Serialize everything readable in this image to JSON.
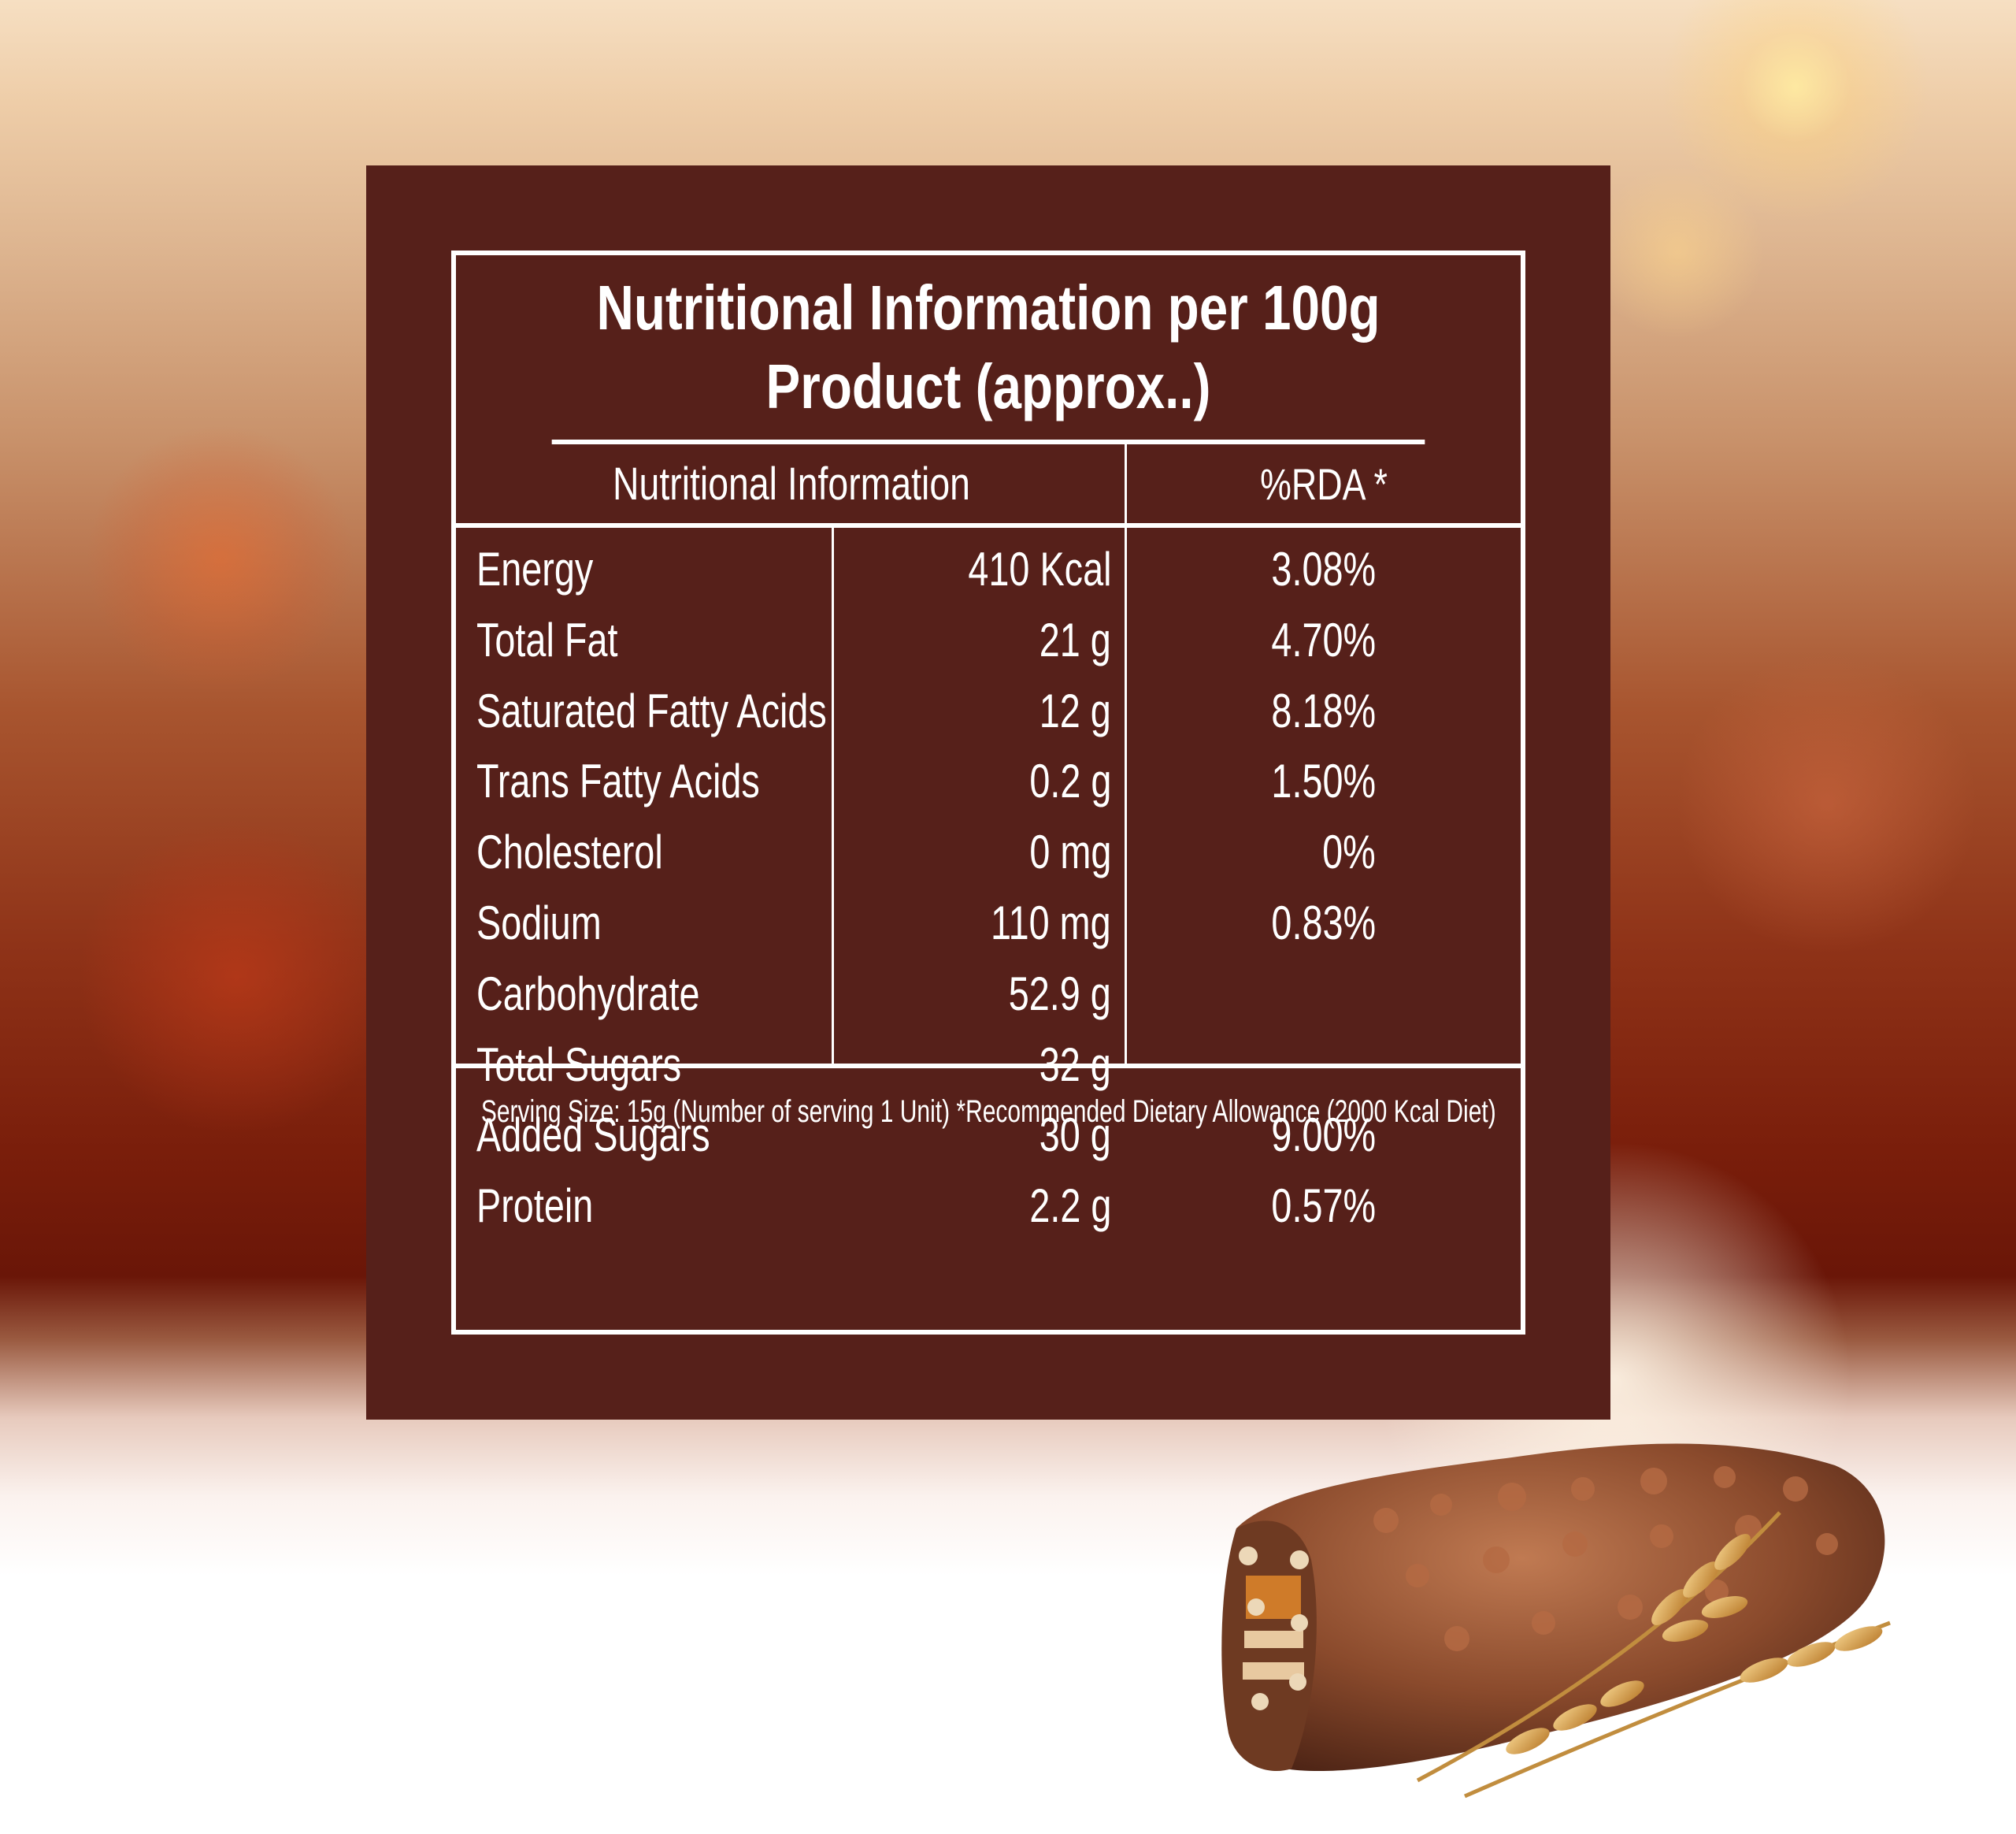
{
  "table": {
    "title_line1": "Nutritional Information per 100g",
    "title_line2": "Product (approx..)",
    "header_left": "Nutritional Information",
    "header_right": "%RDA *",
    "rows": [
      {
        "name": "Energy",
        "amount": "410 Kcal",
        "rda": "3.08%"
      },
      {
        "name": "Total Fat",
        "amount": "21 g",
        "rda": "4.70%"
      },
      {
        "name": "Saturated Fatty Acids",
        "amount": "12 g",
        "rda": "8.18%"
      },
      {
        "name": "Trans Fatty Acids",
        "amount": "0.2 g",
        "rda": "1.50%"
      },
      {
        "name": "Cholesterol",
        "amount": "0 mg",
        "rda": "0%"
      },
      {
        "name": "Sodium",
        "amount": "110 mg",
        "rda": "0.83%"
      },
      {
        "name": "Carbohydrate",
        "amount": "52.9 g",
        "rda": ""
      },
      {
        "name": "Total Sugars",
        "amount": "32 g",
        "rda": ""
      },
      {
        "name": "Added Sugars",
        "amount": "30 g",
        "rda": "9.00%"
      },
      {
        "name": "Protein",
        "amount": "2.2 g",
        "rda": "0.57%"
      }
    ],
    "footer": "Serving Size: 15g (Number of serving 1 Unit) *Recommended Dietary Allowance (2000 Kcal Diet)"
  },
  "colors": {
    "panel": "#56201a",
    "text": "#ffffff",
    "chocolate": "#8a4a2c",
    "wheat": "#d9a14a"
  }
}
